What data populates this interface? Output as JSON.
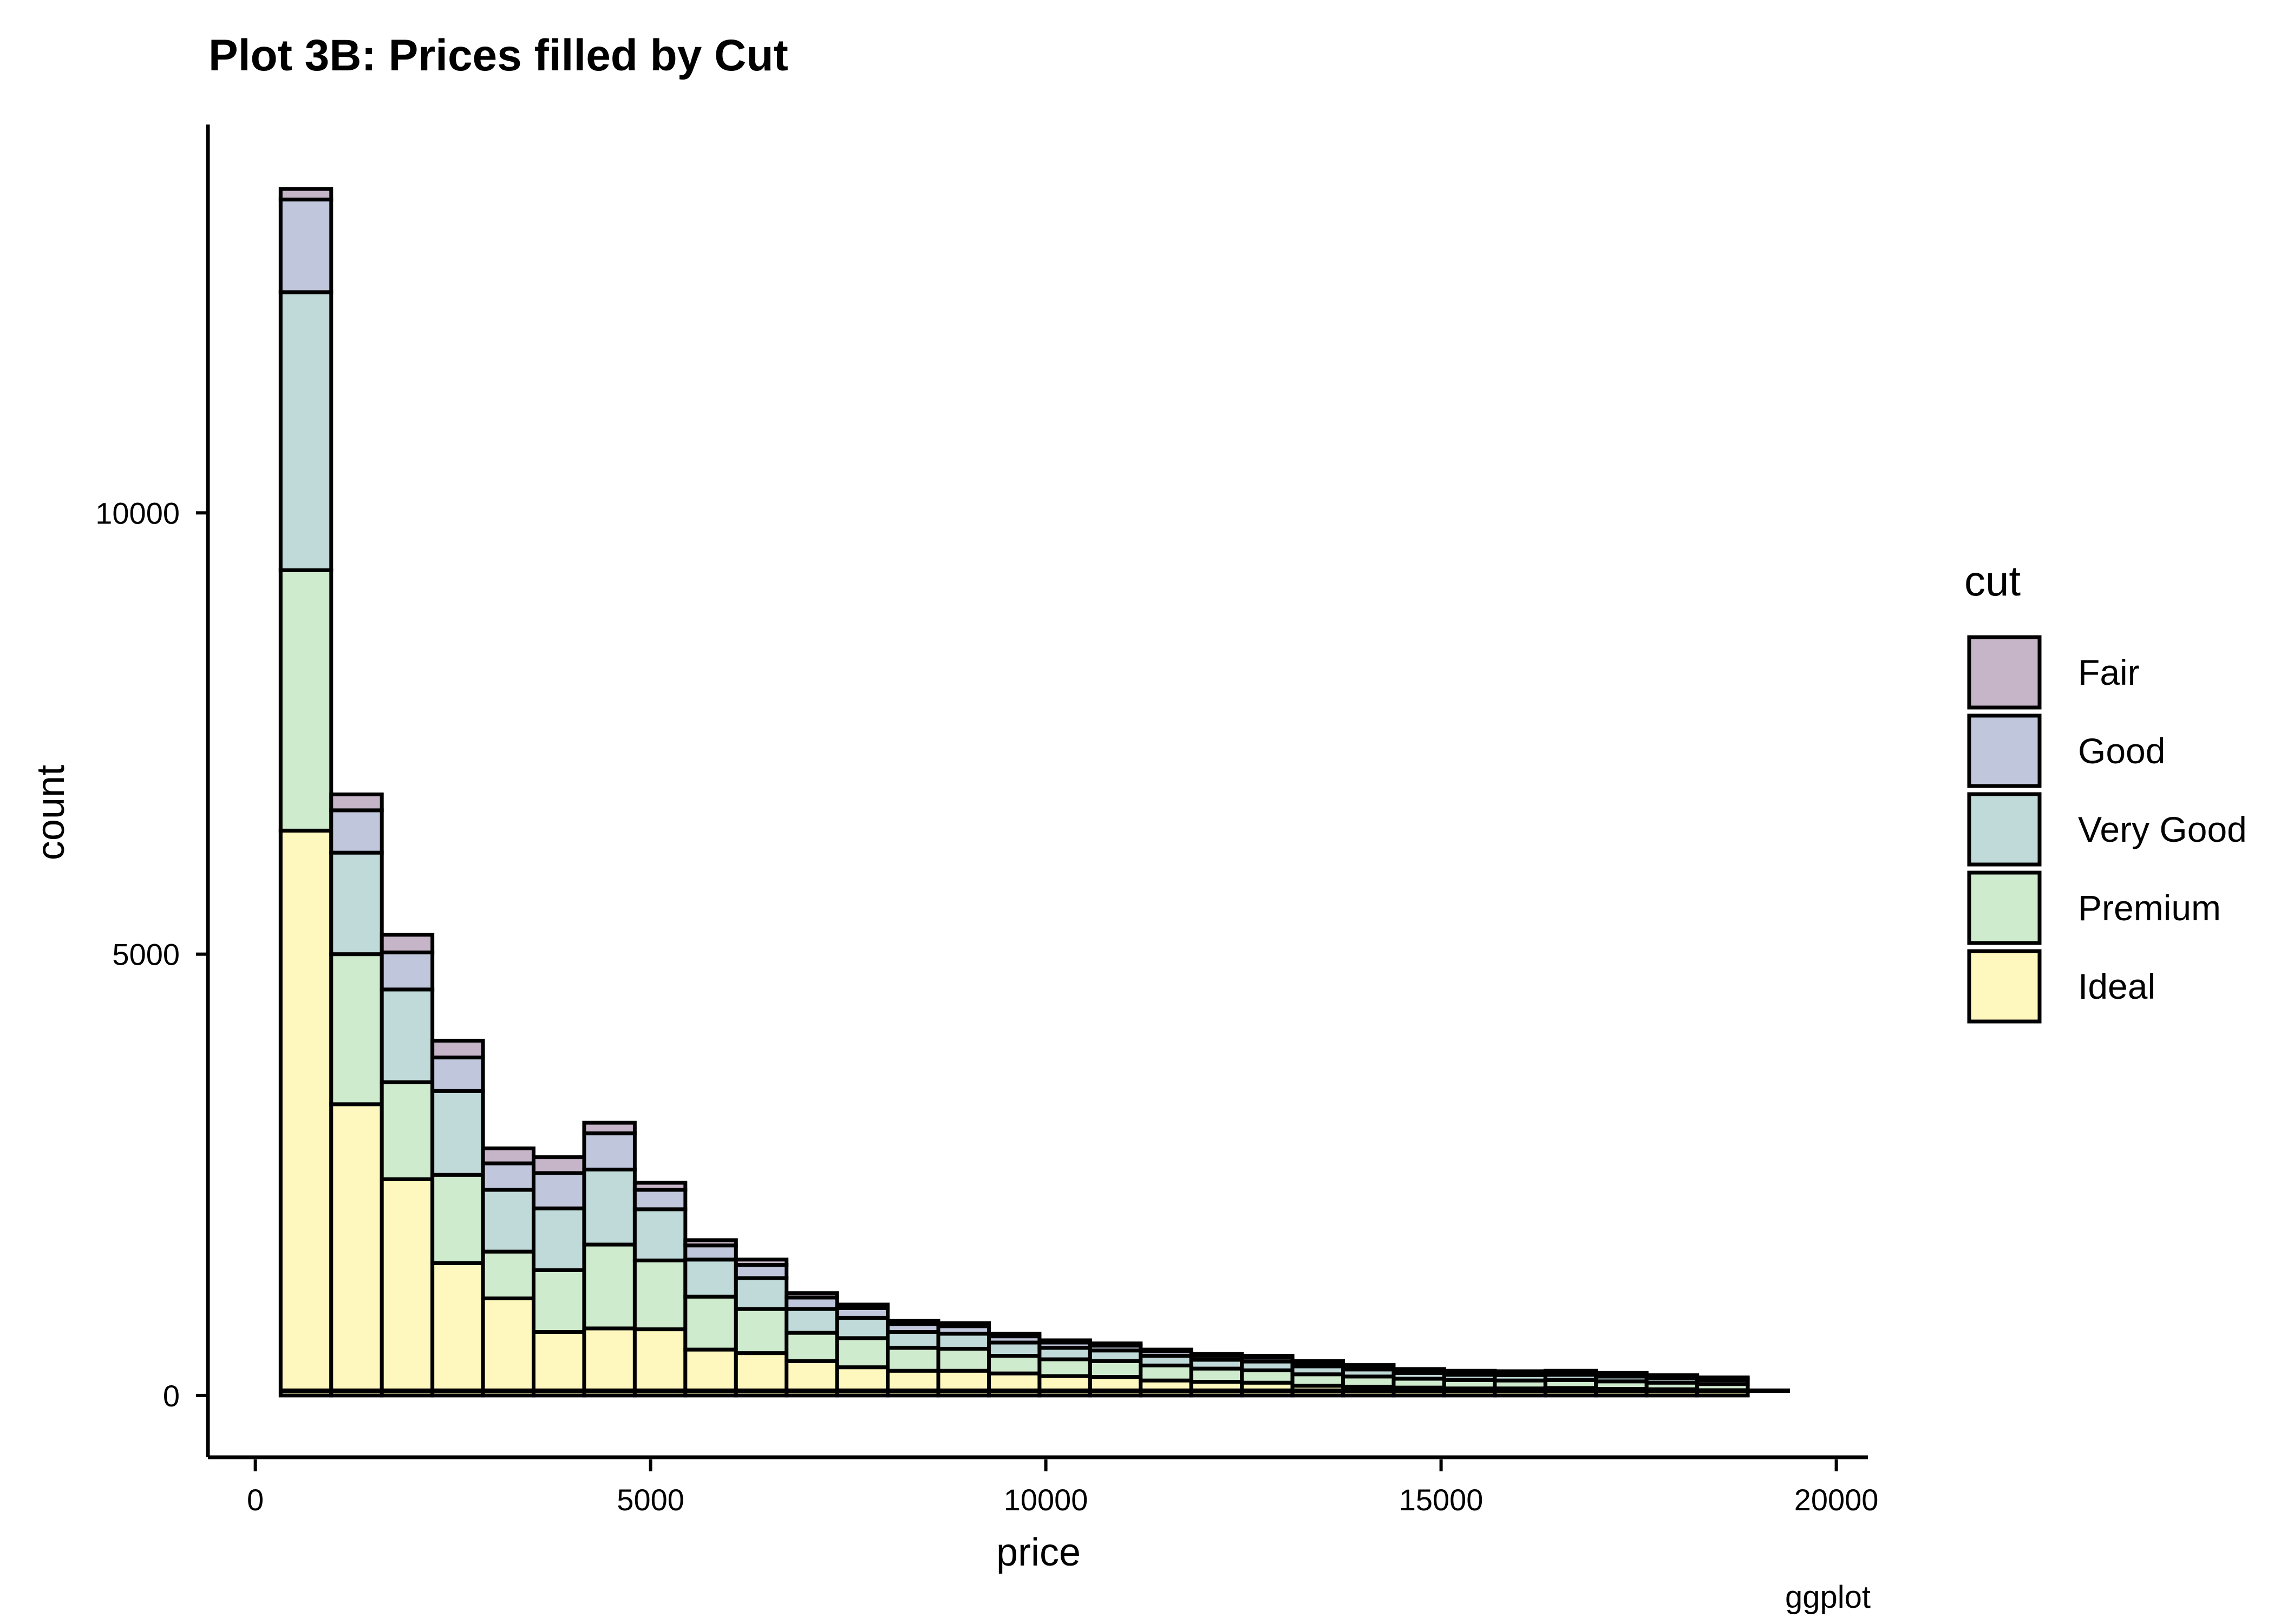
{
  "chart_data": {
    "type": "bar",
    "stacked": true,
    "title": "Plot 3B: Prices filled by Cut",
    "xlabel": "price",
    "ylabel": "count",
    "caption": "ggplot",
    "xlim": [
      -600,
      20400
    ],
    "ylim": [
      -700,
      14400
    ],
    "xticks": [
      0,
      5000,
      10000,
      15000,
      20000
    ],
    "yticks": [
      0,
      5000,
      10000
    ],
    "bin_width": 640,
    "legend": {
      "title": "cut",
      "position": "right"
    },
    "grid": false,
    "bin_left_edges": [
      320,
      960,
      1600,
      2240,
      2880,
      3520,
      4160,
      4800,
      5440,
      6080,
      6720,
      7360,
      8000,
      8640,
      9280,
      9920,
      10560,
      11200,
      11840,
      12480,
      13120,
      13760,
      14400,
      15040,
      15680,
      16320,
      16960,
      17600,
      18240
    ],
    "series": [
      {
        "name": "Ideal",
        "color": "#FFF8BE",
        "values": [
          6400,
          3300,
          2450,
          1500,
          1100,
          720,
          760,
          750,
          520,
          480,
          390,
          320,
          280,
          280,
          250,
          220,
          210,
          170,
          155,
          145,
          110,
          100,
          90,
          80,
          80,
          85,
          75,
          70,
          60
        ]
      },
      {
        "name": "Premium",
        "color": "#CFEBCD",
        "values": [
          2950,
          1700,
          1100,
          1000,
          530,
          700,
          950,
          780,
          600,
          500,
          320,
          330,
          260,
          250,
          200,
          190,
          180,
          170,
          150,
          140,
          130,
          115,
          100,
          95,
          90,
          90,
          85,
          75,
          70
        ]
      },
      {
        "name": "Very Good",
        "color": "#BFDAD9",
        "values": [
          3150,
          1150,
          1050,
          950,
          700,
          700,
          850,
          580,
          420,
          350,
          270,
          230,
          180,
          170,
          150,
          130,
          120,
          110,
          100,
          100,
          90,
          80,
          65,
          60,
          60,
          60,
          55,
          50,
          45
        ]
      },
      {
        "name": "Good",
        "color": "#C0C7DC",
        "values": [
          1050,
          480,
          420,
          380,
          300,
          400,
          410,
          220,
          160,
          150,
          130,
          110,
          90,
          85,
          70,
          60,
          55,
          50,
          45,
          45,
          40,
          35,
          30,
          30,
          30,
          30,
          25,
          25,
          20
        ]
      },
      {
        "name": "Fair",
        "color": "#C6B5C8",
        "values": [
          120,
          180,
          200,
          190,
          170,
          180,
          120,
          80,
          60,
          60,
          50,
          40,
          35,
          35,
          30,
          25,
          25,
          20,
          20,
          20,
          20,
          15,
          15,
          15,
          15,
          15,
          15,
          10,
          10
        ]
      }
    ]
  }
}
